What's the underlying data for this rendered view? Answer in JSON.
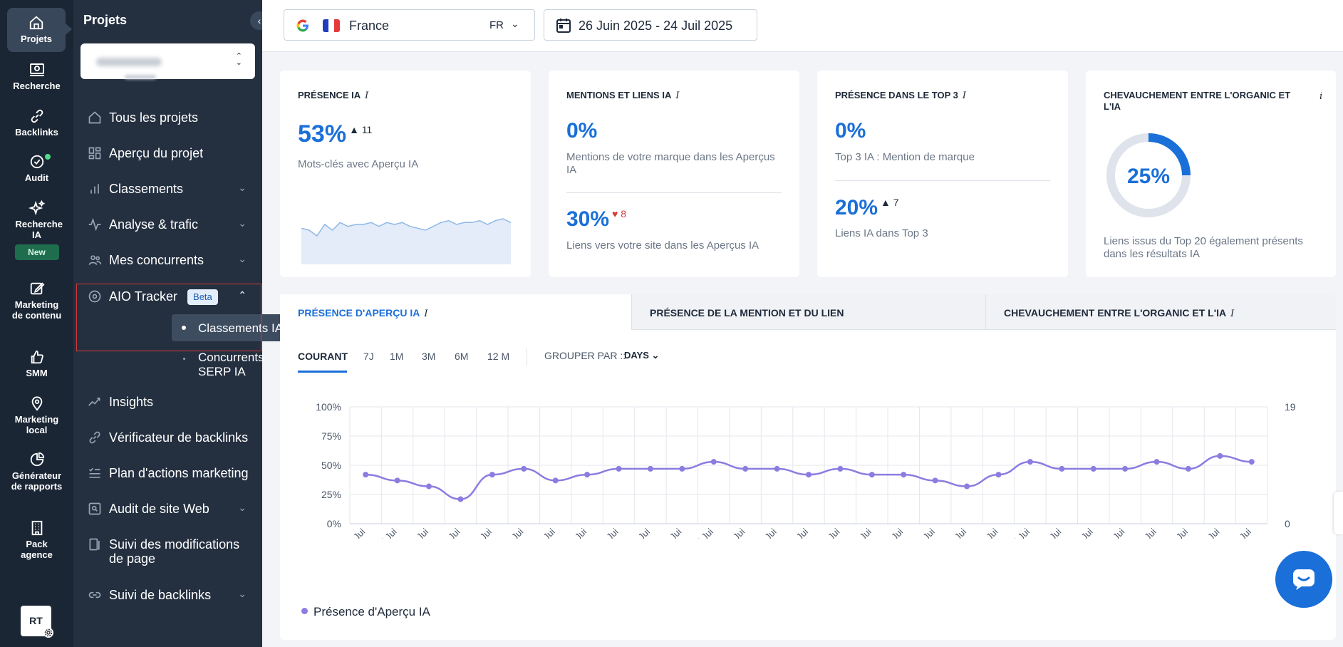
{
  "rail": {
    "projects": "Projets",
    "research": "Recherche",
    "backlinks": "Backlinks",
    "audit": "Audit",
    "ai_research": "Recherche IA",
    "new_badge": "New",
    "content_marketing": "Marketing de contenu",
    "smm": "SMM",
    "local_marketing": "Marketing local",
    "report_generator": "Générateur de rapports",
    "agency_pack": "Pack agence",
    "user_initials": "RT"
  },
  "nav": {
    "title": "Projets",
    "items": [
      {
        "label": "Tous les projets"
      },
      {
        "label": "Aperçu du projet"
      },
      {
        "label": "Classements"
      },
      {
        "label": "Analyse & trafic"
      },
      {
        "label": "Mes concurrents"
      },
      {
        "label": "AIO Tracker",
        "badge": "Beta"
      },
      {
        "label": "Insights"
      },
      {
        "label": "Vérificateur de backlinks"
      },
      {
        "label": "Plan d'actions marketing"
      },
      {
        "label": "Audit de site Web"
      },
      {
        "label": "Suivi des modifications de page"
      },
      {
        "label": "Suivi de backlinks"
      }
    ],
    "sub_items": [
      {
        "label": "Classements IA"
      },
      {
        "label": "Concurrents SERP IA"
      }
    ]
  },
  "topbar": {
    "country": "France",
    "country_code": "FR",
    "date_range": "26 Juin 2025 - 24 Juil 2025"
  },
  "cards": {
    "presence": {
      "title": "Présence IA",
      "value": "53%",
      "delta": "▲ 11",
      "subtitle": "Mots-clés avec Aperçu IA",
      "sparkline": [
        38,
        36,
        30,
        42,
        36,
        44,
        40,
        42,
        42,
        44,
        40,
        44,
        42,
        44,
        40,
        38,
        36,
        40,
        44,
        46,
        42,
        44,
        44,
        46,
        42,
        46,
        48,
        44
      ]
    },
    "mentions": {
      "title": "Mentions et liens IA",
      "value1": "0%",
      "sub1": "Mentions de votre marque dans les Aperçus IA",
      "value2": "30%",
      "delta2": "♥ 8",
      "sub2": "Liens vers votre site dans les Aperçus IA"
    },
    "top3": {
      "title": "Présence dans le Top 3",
      "value1": "0%",
      "sub1": "Top 3 IA : Mention de marque",
      "value2": "20%",
      "delta2": "▲ 7",
      "sub2": "Liens IA dans Top 3"
    },
    "overlap": {
      "title": "Chevauchement entre l'organic et l'IA",
      "value": "25%",
      "fraction": 0.25,
      "subtitle": "Liens issus du Top 20 également présents dans les résultats IA"
    }
  },
  "tabs": [
    {
      "label": "Présence d'Aperçu IA"
    },
    {
      "label": "Présence de la mention et du lien"
    },
    {
      "label": "Chevauchement entre l'organic et l'IA"
    }
  ],
  "ranges": [
    "COURANT",
    "7J",
    "1M",
    "3M",
    "6M",
    "12 M"
  ],
  "group_by": {
    "label": "GROUPER PAR ::",
    "value": "DAYS"
  },
  "colors": {
    "accent": "#1a6fd8",
    "series": "#8b7de0",
    "rail": "#1b2635",
    "nav": "#243040"
  },
  "chart_data": {
    "type": "line",
    "x": [
      "26 Jui",
      "27 Jui",
      "28 Jui",
      "29 Jui",
      "30 Jui",
      "01 Jui",
      "02 Jui",
      "03 Jui",
      "04 Jui",
      "05 Jui",
      "06 Jui",
      "07 Jui",
      "08 Jui",
      "09 Jui",
      "10 Jui",
      "11 Jui",
      "12 Jui",
      "13 Jui",
      "14 Jui",
      "15 Jui",
      "16 Jui",
      "17 Jui",
      "18 Jui",
      "19 Jui",
      "20 Jui",
      "21 Jui",
      "22 Jui",
      "23 Jui",
      "24 Jui"
    ],
    "series": [
      {
        "name": "Présence d'Aperçu IA",
        "values": [
          42,
          37,
          32,
          21,
          42,
          47,
          37,
          42,
          47,
          47,
          47,
          53,
          47,
          47,
          42,
          47,
          42,
          42,
          37,
          32,
          42,
          53,
          47,
          47,
          47,
          53,
          47,
          58,
          53
        ]
      }
    ],
    "y_ticks": [
      "100%",
      "75%",
      "50%",
      "25%",
      "0%"
    ],
    "y2_ticks": [
      "19",
      "0"
    ],
    "ylim": [
      0,
      100
    ],
    "grid": true,
    "legend": "bottom-left"
  }
}
